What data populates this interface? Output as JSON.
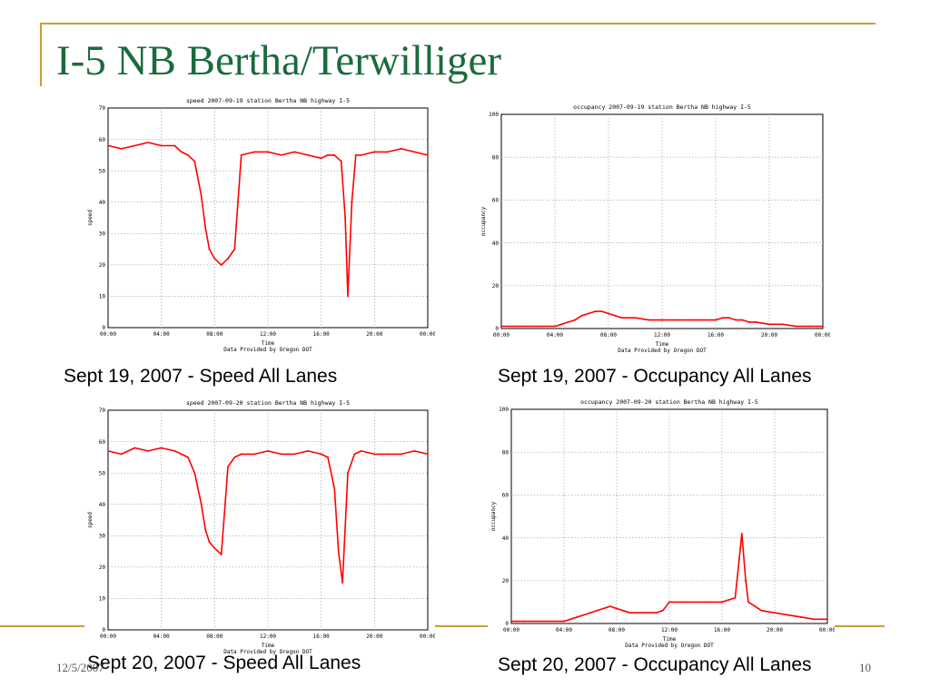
{
  "slide": {
    "title": "I-5 NB Bertha/Terwilliger",
    "date": "12/5/2007",
    "page": "10",
    "accent_color": "#c8a030",
    "title_color": "#1a6b3c"
  },
  "captions": [
    "Sept 19, 2007 - Speed All Lanes",
    "Sept 19, 2007 - Occupancy All Lanes",
    "Sept 20, 2007 - Speed All Lanes",
    "Sept 20, 2007 - Occupancy All Lanes"
  ],
  "chart_data": [
    {
      "type": "line",
      "title": "speed 2007-09-19 station Bertha NB highway  I-5",
      "xlabel": "Time",
      "ylabel": "speed",
      "source": "Data Provided by Oregon DOT",
      "xlim": [
        0,
        24
      ],
      "ylim": [
        0,
        70
      ],
      "xticks": [
        "00:00",
        "04:00",
        "08:00",
        "12:00",
        "16:00",
        "20:00",
        "00:00"
      ],
      "yticks": [
        "0",
        "10",
        "20",
        "30",
        "40",
        "50",
        "60",
        "70"
      ],
      "grid": true,
      "color": "#ff0000",
      "series": [
        {
          "x": [
            0,
            1,
            2,
            3,
            4,
            5,
            5.5,
            6,
            6.5,
            7,
            7.3,
            7.6,
            8,
            8.5,
            9,
            9.5,
            10,
            11,
            12,
            13,
            14,
            15,
            16,
            16.5,
            17,
            17.5,
            17.8,
            18,
            18.3,
            18.6,
            19,
            20,
            21,
            22,
            23,
            24
          ],
          "y": [
            58,
            57,
            58,
            59,
            58,
            58,
            56,
            55,
            53,
            42,
            32,
            25,
            22,
            20,
            22,
            25,
            55,
            56,
            56,
            55,
            56,
            55,
            54,
            55,
            55,
            53,
            35,
            10,
            40,
            55,
            55,
            56,
            56,
            57,
            56,
            55
          ]
        }
      ]
    },
    {
      "type": "line",
      "title": "occupancy 2007-09-19 station Bertha NB highway  I-5",
      "xlabel": "Time",
      "ylabel": "occupancy",
      "source": "Data Provided by Oregon DOT",
      "xlim": [
        0,
        24
      ],
      "ylim": [
        0,
        100
      ],
      "xticks": [
        "00:00",
        "04:00",
        "08:00",
        "12:00",
        "16:00",
        "20:00",
        "00:00"
      ],
      "yticks": [
        "0",
        "20",
        "40",
        "60",
        "80",
        "100"
      ],
      "grid": true,
      "color": "#ff0000",
      "series": [
        {
          "x": [
            0,
            1,
            2,
            3,
            4,
            4.5,
            5,
            5.5,
            6,
            6.5,
            7,
            7.5,
            8,
            8.5,
            9,
            10,
            11,
            12,
            13,
            14,
            15,
            16,
            16.5,
            17,
            17.5,
            18,
            18.5,
            19,
            20,
            21,
            22,
            23,
            24
          ],
          "y": [
            1,
            1,
            1,
            1,
            1,
            2,
            3,
            4,
            6,
            7,
            8,
            8,
            7,
            6,
            5,
            5,
            4,
            4,
            4,
            4,
            4,
            4,
            5,
            5,
            4,
            4,
            3,
            3,
            2,
            2,
            1,
            1,
            1
          ]
        }
      ]
    },
    {
      "type": "line",
      "title": "speed 2007-09-20 station Bertha NB highway  I-5",
      "xlabel": "Time",
      "ylabel": "speed",
      "source": "Data Provided by Oregon DOT",
      "xlim": [
        0,
        24
      ],
      "ylim": [
        0,
        70
      ],
      "xticks": [
        "00:00",
        "04:00",
        "08:00",
        "12:00",
        "16:00",
        "20:00",
        "00:00"
      ],
      "yticks": [
        "0",
        "10",
        "20",
        "30",
        "40",
        "50",
        "60",
        "70"
      ],
      "grid": true,
      "color": "#ff0000",
      "series": [
        {
          "x": [
            0,
            1,
            2,
            3,
            4,
            5,
            5.5,
            6,
            6.5,
            7,
            7.3,
            7.6,
            8,
            8.5,
            9,
            9.5,
            10,
            11,
            12,
            13,
            14,
            15,
            16,
            16.5,
            17,
            17.3,
            17.6,
            18,
            18.5,
            19,
            20,
            21,
            22,
            23,
            24
          ],
          "y": [
            57,
            56,
            58,
            57,
            58,
            57,
            56,
            55,
            50,
            40,
            32,
            28,
            26,
            24,
            52,
            55,
            56,
            56,
            57,
            56,
            56,
            57,
            56,
            55,
            45,
            25,
            15,
            50,
            56,
            57,
            56,
            56,
            56,
            57,
            56
          ]
        }
      ]
    },
    {
      "type": "line",
      "title": "occupancy 2007-09-20 station Bertha NB highway  I-5",
      "xlabel": "Time",
      "ylabel": "occupancy",
      "source": "Data Provided by Oregon DOT",
      "xlim": [
        0,
        24
      ],
      "ylim": [
        0,
        100
      ],
      "xticks": [
        "00:00",
        "04:00",
        "08:00",
        "12:00",
        "16:00",
        "20:00",
        "00:00"
      ],
      "yticks": [
        "0",
        "20",
        "40",
        "60",
        "80",
        "100"
      ],
      "grid": true,
      "color": "#ff0000",
      "series": [
        {
          "x": [
            0,
            1,
            2,
            3,
            4,
            4.5,
            5,
            5.5,
            6,
            6.5,
            7,
            7.5,
            8,
            8.5,
            9,
            10,
            11,
            11.5,
            12,
            13,
            14,
            15,
            16,
            16.5,
            17,
            17.3,
            17.5,
            17.8,
            18,
            18.5,
            19,
            20,
            21,
            22,
            23,
            24
          ],
          "y": [
            1,
            1,
            1,
            1,
            1,
            2,
            3,
            4,
            5,
            6,
            7,
            8,
            7,
            6,
            5,
            5,
            5,
            6,
            10,
            10,
            10,
            10,
            10,
            11,
            12,
            30,
            42,
            20,
            10,
            8,
            6,
            5,
            4,
            3,
            2,
            2
          ]
        }
      ]
    }
  ]
}
